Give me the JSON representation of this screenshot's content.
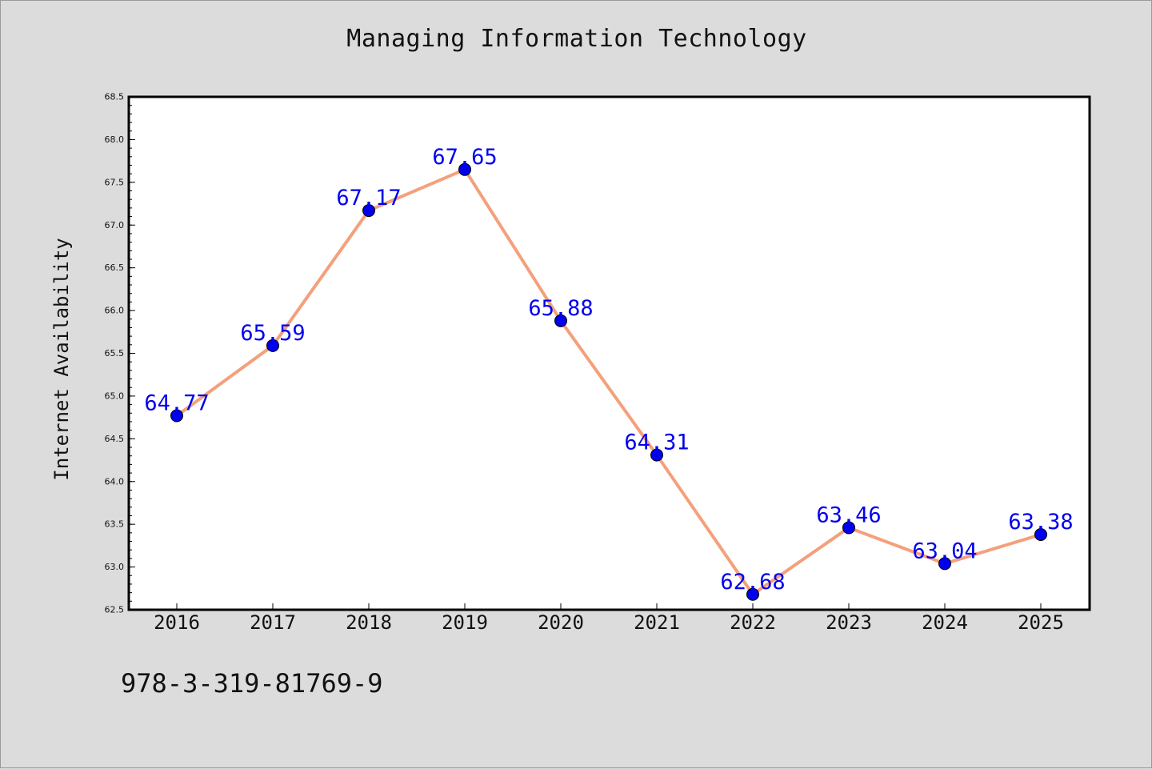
{
  "chart_data": {
    "type": "line",
    "title": "Managing Information Technology",
    "xlabel": "",
    "ylabel": "Internet Availability",
    "categories": [
      "2016",
      "2017",
      "2018",
      "2019",
      "2020",
      "2021",
      "2022",
      "2023",
      "2024",
      "2025"
    ],
    "series": [
      {
        "values": [
          64.77,
          65.59,
          67.17,
          67.65,
          65.88,
          64.31,
          62.68,
          63.46,
          63.04,
          63.38
        ],
        "labels": [
          "64.77",
          "65.59",
          "67.17",
          "67.65",
          "65.88",
          "64.31",
          "62.68",
          "63.46",
          "63.04",
          "63.38"
        ],
        "line_color": "#f4a07c",
        "marker_color": "#0000ee",
        "label_color": "#0000ee"
      }
    ],
    "ylim": [
      62.5,
      68.5
    ],
    "yticks": [
      "62.5",
      "63.0",
      "63.5",
      "64.0",
      "64.5",
      "65.0",
      "65.5",
      "66.0",
      "66.5",
      "67.0",
      "67.5",
      "68.0",
      "68.5"
    ],
    "grid": false,
    "legend": "none"
  },
  "footer": {
    "isbn": "978-3-319-81769-9"
  }
}
